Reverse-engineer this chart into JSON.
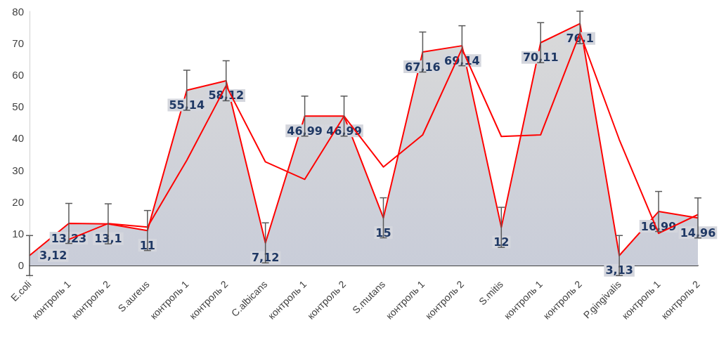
{
  "chart_data": {
    "type": "area",
    "categories": [
      "E.coli",
      "контроль 1",
      "контроль 2",
      "S.aureus",
      "контроль 1",
      "контроль 2",
      "C.albicans",
      "контроль 1",
      "контроль 2",
      "S.mutans",
      "контроль 1",
      "контроль 2",
      "S.mitis",
      "контроль 1",
      "контроль 2",
      "P.gingivalis",
      "контроль 1",
      "контроль 2"
    ],
    "series": [
      {
        "color": "#d9d9d9",
        "values": [
          3.12,
          13.23,
          13.1,
          11,
          55.14,
          58.12,
          7.12,
          46.99,
          46.99,
          15,
          67.16,
          69.14,
          12,
          70.11,
          76.1,
          3.13,
          16.99,
          14.96
        ],
        "value_labels": [
          "3,12",
          "13,23",
          "13,1",
          "11",
          "55,14",
          "58,12",
          "7,12",
          "46,99",
          "46,99",
          "15",
          "67,16",
          "69,14",
          "12",
          "70,11",
          "76,1",
          "3,13",
          "16,99",
          "14,96"
        ],
        "errors": [
          6.3,
          6.3,
          6.3,
          6.3,
          6.3,
          6.3,
          6.3,
          6.3,
          6.3,
          6.3,
          6.3,
          6.3,
          6.3,
          6.3,
          [
            69.8,
            80
          ],
          6.3,
          6.3,
          6.3
        ]
      },
      {
        "type": "line",
        "color": "#ff0000",
        "values": [
          null,
          8.2,
          13.2,
          12.1,
          33.1,
          56.6,
          32.6,
          27.1,
          47.0,
          31.0,
          41.1,
          68.2,
          40.6,
          41.1,
          73.1,
          39.6,
          10.1,
          16.0
        ]
      }
    ],
    "ylim": [
      -4,
      80
    ],
    "yticks": [
      0,
      10,
      20,
      30,
      40,
      50,
      60,
      70,
      80
    ],
    "grid": false,
    "marker": "none"
  }
}
